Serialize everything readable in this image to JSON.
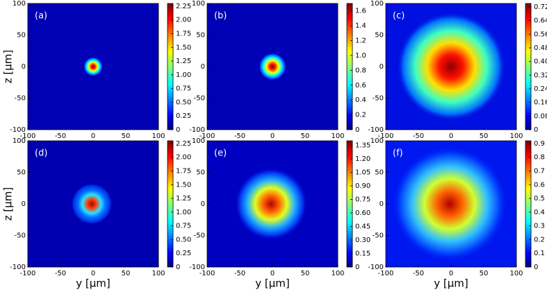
{
  "chart_data": [
    {
      "type": "heatmap",
      "label": "(a)",
      "ylabel": "z [μm]",
      "xlim": [
        -100,
        100
      ],
      "ylim": [
        -100,
        100
      ],
      "xticks": [
        -100,
        -50,
        0,
        50,
        100
      ],
      "yticks": [
        -100,
        -50,
        0,
        50,
        100
      ],
      "clim": [
        0,
        2.3
      ],
      "colormap": "jet",
      "cticks": [
        0,
        {
          "value": 0.25,
          "label": "0.25"
        },
        {
          "value": 0.5,
          "label": "0.50"
        },
        {
          "value": 0.75,
          "label": "0.75"
        },
        {
          "value": 1,
          "label": "1.00"
        },
        {
          "value": 1.25,
          "label": "1.25"
        },
        {
          "value": 1.5,
          "label": "1.50"
        },
        {
          "value": 1.75,
          "label": "1.75"
        },
        {
          "value": 2,
          "label": "2.00"
        },
        {
          "value": 2.25,
          "label": "2.25"
        }
      ]
    },
    {
      "type": "heatmap",
      "label": "(b)",
      "xlim": [
        -100,
        100
      ],
      "ylim": [
        -100,
        100
      ],
      "xticks": [
        -100,
        -50,
        0,
        50,
        100
      ],
      "yticks": [
        -100,
        -50,
        0,
        50,
        100
      ],
      "clim": [
        0,
        1.7
      ],
      "colormap": "jet",
      "cticks": [
        0,
        0.2,
        0.4,
        0.6,
        0.8,
        {
          "value": 1,
          "label": "1.0"
        },
        1.2,
        1.4,
        1.6
      ]
    },
    {
      "type": "heatmap",
      "label": "(c)",
      "xlim": [
        -100,
        100
      ],
      "ylim": [
        -100,
        100
      ],
      "xticks": [
        -100,
        -50,
        0,
        50,
        100
      ],
      "yticks": [
        -100,
        -50,
        0,
        50,
        100
      ],
      "clim": [
        0,
        0.74
      ],
      "colormap": "jet",
      "cticks": [
        0,
        0.08,
        0.16,
        0.24,
        0.32,
        {
          "value": 0.4,
          "label": "0.40"
        },
        0.48,
        0.56,
        0.64,
        0.72
      ]
    },
    {
      "type": "heatmap",
      "label": "(d)",
      "xlabel": "y [μm]",
      "ylabel": "z [μm]",
      "xlim": [
        -100,
        100
      ],
      "ylim": [
        -100,
        100
      ],
      "xticks": [
        -100,
        -50,
        0,
        50,
        100
      ],
      "yticks": [
        -100,
        -50,
        0,
        50,
        100
      ],
      "clim": [
        0,
        2.3
      ],
      "colormap": "jet",
      "cticks": [
        0,
        {
          "value": 0.25,
          "label": "0.25"
        },
        {
          "value": 0.5,
          "label": "0.50"
        },
        {
          "value": 0.75,
          "label": "0.75"
        },
        {
          "value": 1,
          "label": "1.00"
        },
        {
          "value": 1.25,
          "label": "1.25"
        },
        {
          "value": 1.5,
          "label": "1.50"
        },
        {
          "value": 1.75,
          "label": "1.75"
        },
        {
          "value": 2,
          "label": "2.00"
        },
        {
          "value": 2.25,
          "label": "2.25"
        }
      ]
    },
    {
      "type": "heatmap",
      "label": "(e)",
      "xlabel": "y [μm]",
      "xlim": [
        -100,
        100
      ],
      "ylim": [
        -100,
        100
      ],
      "xticks": [
        -100,
        -50,
        0,
        50,
        100
      ],
      "yticks": [
        -100,
        -50,
        0,
        50,
        100
      ],
      "clim": [
        0,
        1.4
      ],
      "colormap": "jet",
      "cticks": [
        0,
        0.15,
        {
          "value": 0.3,
          "label": "0.30"
        },
        0.45,
        {
          "value": 0.6,
          "label": "0.60"
        },
        0.75,
        {
          "value": 0.9,
          "label": "0.90"
        },
        1.05,
        {
          "value": 1.2,
          "label": "1.20"
        },
        1.35
      ]
    },
    {
      "type": "heatmap",
      "label": "(f)",
      "xlabel": "y [μm]",
      "xlim": [
        -100,
        100
      ],
      "ylim": [
        -100,
        100
      ],
      "xticks": [
        -100,
        -50,
        0,
        50,
        100
      ],
      "yticks": [
        -100,
        -50,
        0,
        50,
        100
      ],
      "clim": [
        0,
        0.92
      ],
      "colormap": "jet",
      "cticks": [
        0,
        0.1,
        0.2,
        0.3,
        0.4,
        0.5,
        0.6,
        0.7,
        0.8,
        0.9
      ]
    }
  ]
}
